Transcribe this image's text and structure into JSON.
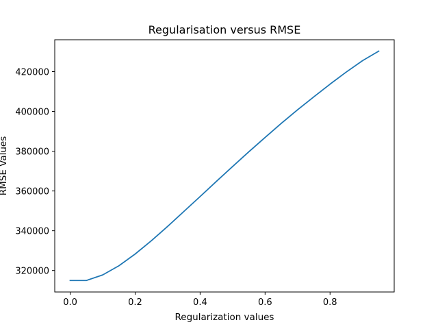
{
  "chart_data": {
    "type": "line",
    "title": "Regularisation versus RMSE",
    "xlabel": "Regularization values",
    "ylabel": "RMSE Values",
    "xlim": [
      -0.0475,
      0.9975
    ],
    "ylim": [
      309220,
      436020
    ],
    "xticks": [
      0.0,
      0.2,
      0.4,
      0.6,
      0.8
    ],
    "xtick_labels": [
      "0.0",
      "0.2",
      "0.4",
      "0.6",
      "0.8"
    ],
    "yticks": [
      320000,
      340000,
      360000,
      380000,
      400000,
      420000
    ],
    "ytick_labels": [
      "320000",
      "340000",
      "360000",
      "380000",
      "400000",
      "420000"
    ],
    "grid": false,
    "x": [
      0.0,
      0.05,
      0.1,
      0.15,
      0.2,
      0.25,
      0.3,
      0.35,
      0.4,
      0.45,
      0.5,
      0.55,
      0.6,
      0.65,
      0.7,
      0.75,
      0.8,
      0.85,
      0.9,
      0.95
    ],
    "series": [
      {
        "color": "#1f77b4",
        "values": [
          315000,
          315000,
          317800,
          322400,
          328300,
          335000,
          342200,
          349700,
          357200,
          364800,
          372300,
          379700,
          386900,
          394000,
          400800,
          407300,
          413700,
          419800,
          425500,
          430300
        ]
      }
    ]
  }
}
